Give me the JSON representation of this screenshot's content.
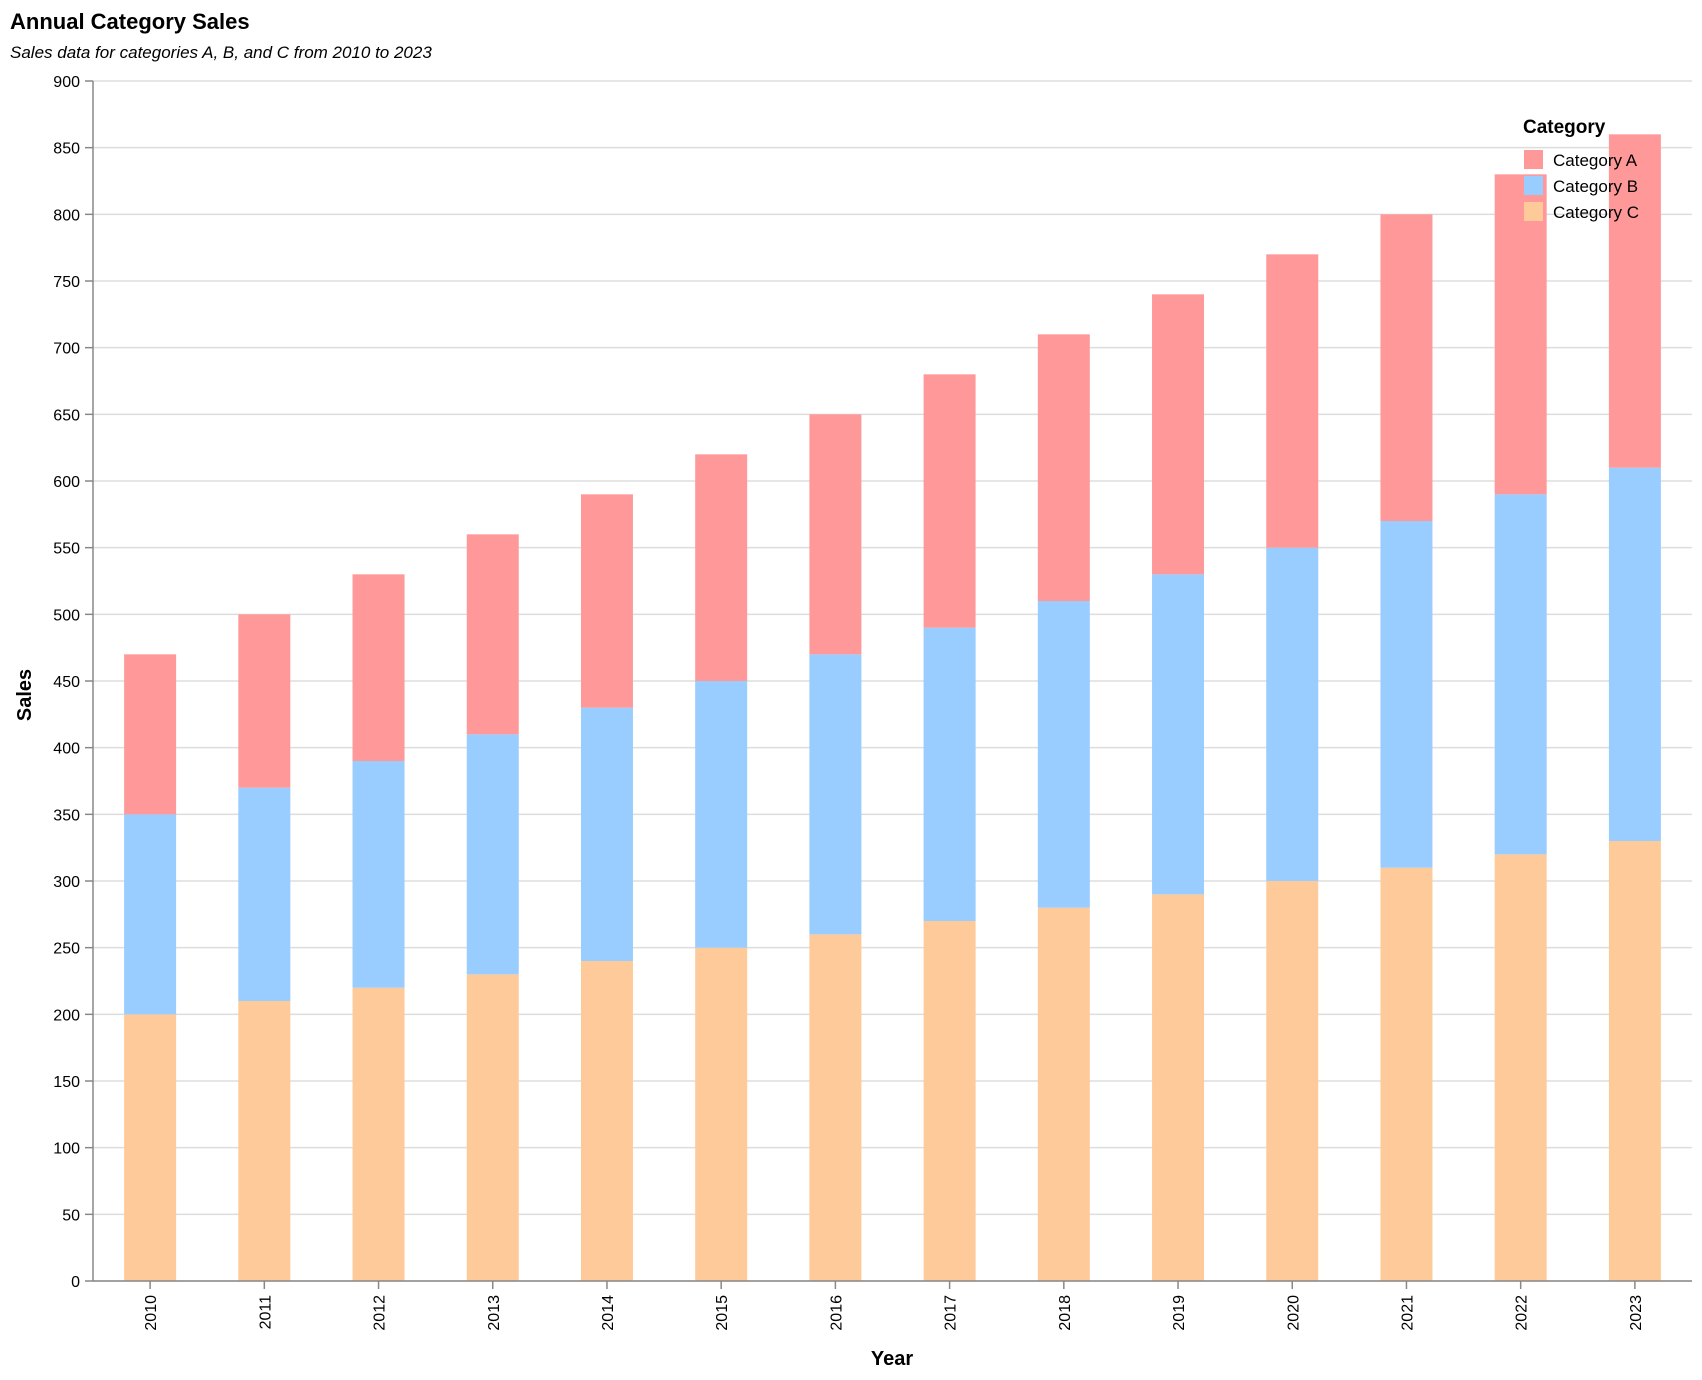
{
  "chart_data": {
    "type": "bar",
    "stacked": true,
    "title": "Annual Category Sales",
    "subtitle": "Sales data for categories A, B, and C from 2010 to 2023",
    "xlabel": "Year",
    "ylabel": "Sales",
    "ylim": [
      0,
      900
    ],
    "yticks": [
      0,
      50,
      100,
      150,
      200,
      250,
      300,
      350,
      400,
      450,
      500,
      550,
      600,
      650,
      700,
      750,
      800,
      850,
      900
    ],
    "grid": true,
    "legend_title": "Category",
    "legend_position": "top-right",
    "categories": [
      "2010",
      "2011",
      "2012",
      "2013",
      "2014",
      "2015",
      "2016",
      "2017",
      "2018",
      "2019",
      "2020",
      "2021",
      "2022",
      "2023"
    ],
    "series": [
      {
        "name": "Category C",
        "color": "#ffca99",
        "values": [
          200,
          210,
          220,
          230,
          240,
          250,
          260,
          270,
          280,
          290,
          300,
          310,
          320,
          330
        ]
      },
      {
        "name": "Category B",
        "color": "#99ccff",
        "values": [
          150,
          160,
          170,
          180,
          190,
          200,
          210,
          220,
          230,
          240,
          250,
          260,
          270,
          280
        ]
      },
      {
        "name": "Category A",
        "color": "#ff9999",
        "values": [
          120,
          130,
          140,
          150,
          160,
          170,
          180,
          190,
          200,
          210,
          220,
          230,
          240,
          250
        ]
      }
    ],
    "legend_order": [
      "Category A",
      "Category B",
      "Category C"
    ]
  }
}
